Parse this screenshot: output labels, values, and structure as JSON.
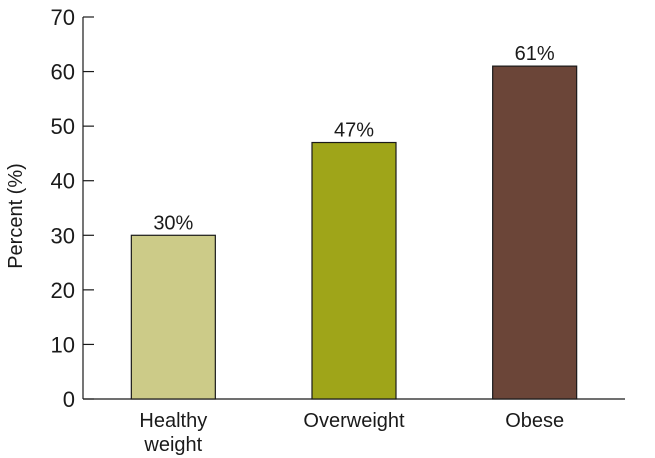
{
  "chart_data": {
    "type": "bar",
    "title": "",
    "xlabel": "",
    "ylabel": "Percent (%)",
    "ylim": [
      0,
      70
    ],
    "yticks": [
      0,
      10,
      20,
      30,
      40,
      50,
      60,
      70
    ],
    "grid": false,
    "legend": "none",
    "categories": [
      [
        "Healthy",
        "weight"
      ],
      [
        "Overweight"
      ],
      [
        "Obese"
      ]
    ],
    "values": [
      30,
      47,
      61
    ],
    "data_labels": [
      "30%",
      "47%",
      "61%"
    ],
    "colors": [
      "#cccb88",
      "#9fa519",
      "#6b4538"
    ]
  }
}
